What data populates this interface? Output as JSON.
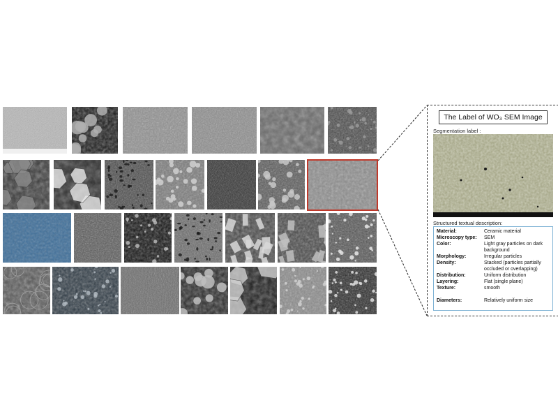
{
  "panel": {
    "title": "The Label of WO₃ SEM Image",
    "segmentation_caption": "Segmentation label :",
    "description_caption": "Structured textual description:",
    "attributes": [
      {
        "key": "Material:",
        "value": "Ceramic material"
      },
      {
        "key": "Microscopy type:",
        "value": "SEM"
      },
      {
        "key": "Color:",
        "value": "Light gray particles on dark background"
      },
      {
        "key": "Morphology:",
        "value": "Irregular particles"
      },
      {
        "key": "Density:",
        "value": "Stacked (particles partially occluded or overlapping)"
      },
      {
        "key": "Distribution:",
        "value": "Uniform distribution"
      },
      {
        "key": "Layering:",
        "value": "Flat (single plane)"
      },
      {
        "key": "Texture:",
        "value": "smooth"
      },
      {
        "key": "Diameters:",
        "value": "Relatively uniform size"
      }
    ]
  },
  "colors": {
    "highlight": "#c0392b",
    "description_border": "#7fb3d5"
  }
}
